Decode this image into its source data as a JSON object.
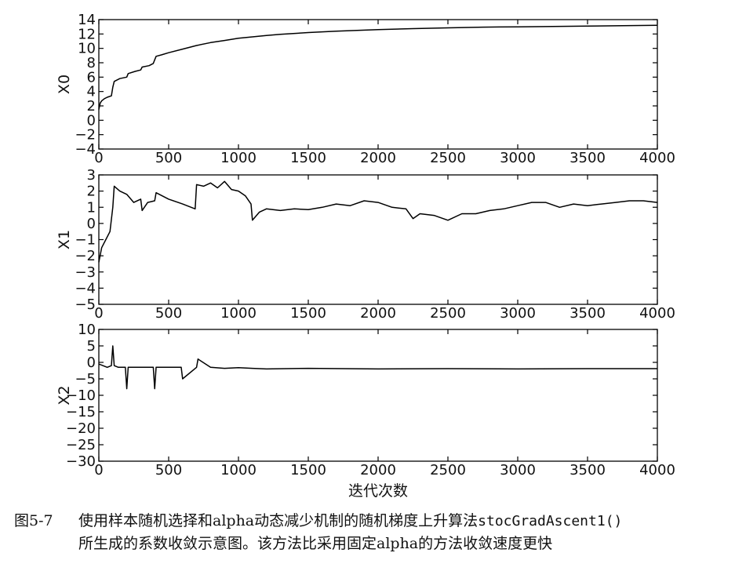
{
  "chart_data": [
    {
      "type": "line",
      "ylabel": "X0",
      "xlim": [
        0,
        4000
      ],
      "ylim": [
        -4,
        14
      ],
      "xticks": [
        0,
        500,
        1000,
        1500,
        2000,
        2500,
        3000,
        3500,
        4000
      ],
      "yticks": [
        -4,
        -2,
        0,
        2,
        4,
        6,
        8,
        10,
        12,
        14
      ],
      "grid": false,
      "series": [
        {
          "x": [
            0,
            10,
            20,
            40,
            60,
            90,
            100,
            110,
            150,
            200,
            210,
            260,
            300,
            310,
            360,
            390,
            400,
            410,
            450,
            500,
            600,
            700,
            800,
            900,
            1000,
            1100,
            1200,
            1300,
            1500,
            1700,
            2000,
            2250,
            2500,
            2750,
            3000,
            3250,
            3500,
            3750,
            4000
          ],
          "y": [
            1.5,
            2.4,
            2.7,
            3.0,
            3.2,
            3.4,
            4.6,
            5.4,
            5.8,
            6.0,
            6.5,
            6.8,
            7.0,
            7.4,
            7.6,
            7.9,
            8.4,
            8.9,
            9.1,
            9.4,
            9.9,
            10.4,
            10.8,
            11.1,
            11.4,
            11.6,
            11.8,
            11.95,
            12.2,
            12.4,
            12.6,
            12.75,
            12.85,
            12.95,
            13.0,
            13.05,
            13.1,
            13.15,
            13.2
          ]
        }
      ]
    },
    {
      "type": "line",
      "ylabel": "X1",
      "xlim": [
        0,
        4000
      ],
      "ylim": [
        -5,
        3
      ],
      "xticks": [
        0,
        500,
        1000,
        1500,
        2000,
        2500,
        3000,
        3500,
        4000
      ],
      "yticks": [
        -5,
        -4,
        -3,
        -2,
        -1,
        0,
        1,
        2,
        3
      ],
      "grid": false,
      "series": [
        {
          "x": [
            0,
            20,
            50,
            80,
            100,
            110,
            150,
            200,
            250,
            300,
            310,
            350,
            400,
            410,
            500,
            600,
            690,
            700,
            750,
            800,
            850,
            900,
            950,
            1000,
            1050,
            1090,
            1100,
            1150,
            1200,
            1300,
            1400,
            1500,
            1600,
            1700,
            1800,
            1900,
            2000,
            2100,
            2200,
            2250,
            2300,
            2400,
            2500,
            2600,
            2700,
            2800,
            2900,
            3000,
            3100,
            3200,
            3300,
            3400,
            3500,
            3600,
            3700,
            3800,
            3900,
            4000
          ],
          "y": [
            -2.4,
            -1.5,
            -1.0,
            -0.5,
            1.0,
            2.3,
            2.0,
            1.8,
            1.3,
            1.5,
            0.8,
            1.3,
            1.4,
            1.9,
            1.5,
            1.2,
            0.9,
            2.4,
            2.3,
            2.5,
            2.2,
            2.6,
            2.1,
            2.0,
            1.7,
            1.2,
            0.2,
            0.7,
            0.9,
            0.8,
            0.9,
            0.85,
            1.0,
            1.2,
            1.1,
            1.4,
            1.3,
            1.0,
            0.9,
            0.3,
            0.6,
            0.5,
            0.2,
            0.6,
            0.6,
            0.8,
            0.9,
            1.1,
            1.3,
            1.3,
            1.0,
            1.2,
            1.1,
            1.2,
            1.3,
            1.4,
            1.4,
            1.3
          ]
        }
      ]
    },
    {
      "type": "line",
      "ylabel": "X2",
      "xlabel": "迭代次数",
      "xlim": [
        0,
        4000
      ],
      "ylim": [
        -30,
        10
      ],
      "xticks": [
        0,
        500,
        1000,
        1500,
        2000,
        2500,
        3000,
        3500,
        4000
      ],
      "yticks": [
        -30,
        -25,
        -20,
        -15,
        -10,
        -5,
        0,
        5,
        10
      ],
      "grid": false,
      "series": [
        {
          "x": [
            0,
            30,
            60,
            90,
            100,
            110,
            140,
            190,
            200,
            210,
            300,
            390,
            400,
            410,
            500,
            590,
            600,
            700,
            710,
            800,
            900,
            1000,
            1100,
            1200,
            1500,
            2000,
            2500,
            3000,
            3500,
            4000
          ],
          "y": [
            -0.5,
            -1.0,
            -1.5,
            -1.0,
            5.0,
            -1.0,
            -1.5,
            -1.5,
            -8.0,
            -1.5,
            -1.5,
            -1.5,
            -8.0,
            -1.5,
            -1.5,
            -1.5,
            -5.0,
            -1.5,
            1.0,
            -1.5,
            -1.8,
            -1.6,
            -1.8,
            -2.0,
            -1.8,
            -2.0,
            -1.9,
            -2.0,
            -1.9,
            -1.9
          ]
        }
      ]
    }
  ],
  "caption": {
    "number": "图5-7",
    "text_part1": "使用样本随机选择和alpha动态减少机制的随机梯度上升算法",
    "code": "stocGradAscent1()",
    "text_part2": "所生成的系数收敛示意图。该方法比采用固定alpha的方法收敛速度更快"
  }
}
